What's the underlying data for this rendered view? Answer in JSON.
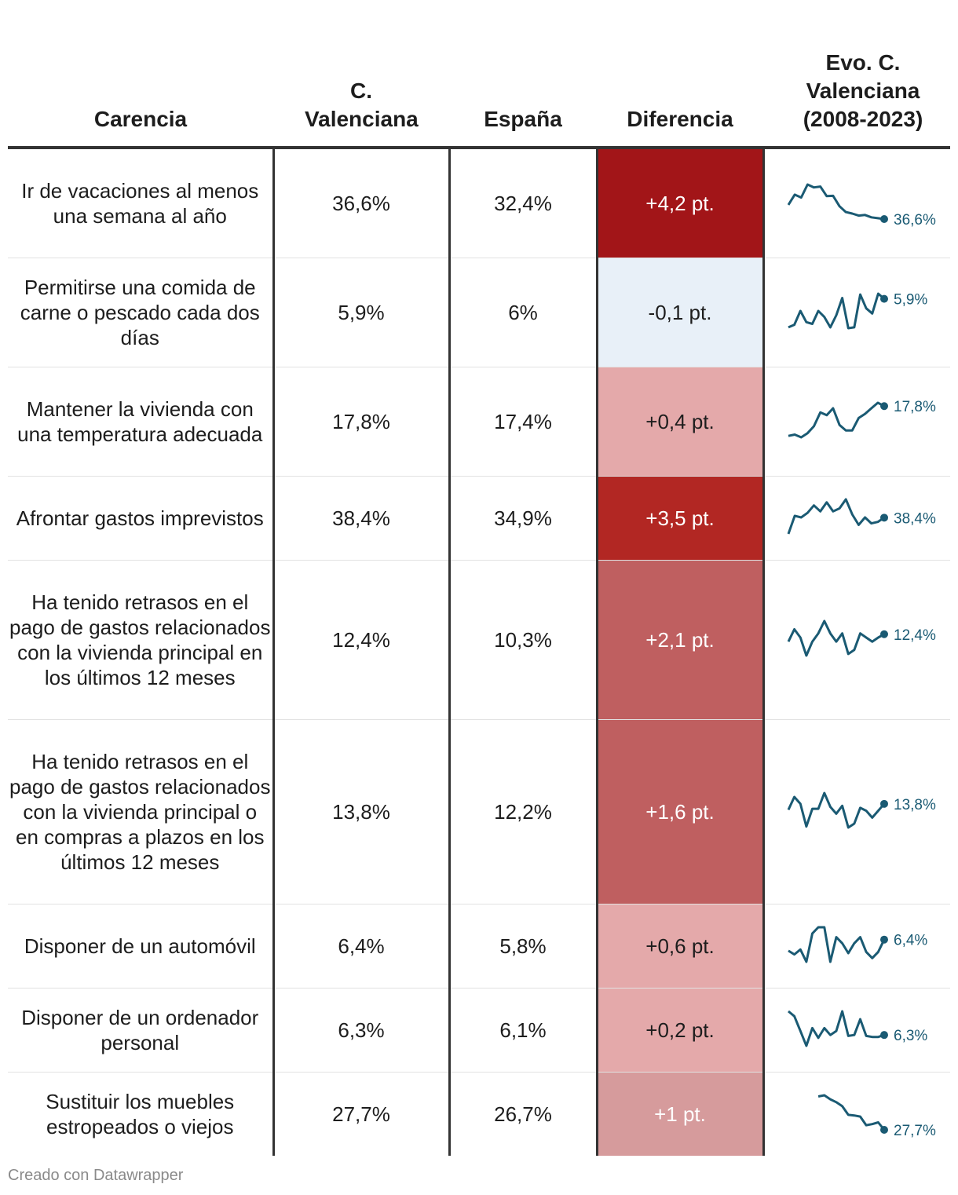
{
  "header": {
    "carencia": "Carencia",
    "cval": "C. Valenciana",
    "espana": "España",
    "diferencia": "Diferencia",
    "evo": "Evo. C. Valenciana (2008-2023)"
  },
  "footer": {
    "credit": "Creado con Datawrapper"
  },
  "colors": {
    "sparkline": "#1a5a73",
    "header_rule": "#333333"
  },
  "chart_data": {
    "type": "table",
    "columns": [
      "Carencia",
      "C. Valenciana",
      "España",
      "Diferencia",
      "Evo. C. Valenciana (2008-2023)"
    ],
    "rows": [
      {
        "carencia": "Ir de vacaciones al menos una semana al año",
        "cval": "36,6%",
        "espana": "32,4%",
        "diff": "+4,2 pt.",
        "diff_value": 4.2,
        "diff_color": "#a21518",
        "spark_label": "36,6%",
        "spark": [
          41.5,
          45,
          44,
          48.5,
          47.5,
          47.8,
          44.5,
          44.6,
          41,
          39,
          38.5,
          37.8,
          38,
          37.2,
          36.9,
          36.6
        ]
      },
      {
        "carencia": "Permitirse una comida de carne o pescado cada dos días",
        "cval": "5,9%",
        "espana": "6%",
        "diff": "-0,1 pt.",
        "diff_value": -0.1,
        "diff_color": "#e8f0f8",
        "spark_label": "5,9%",
        "spark": [
          2.6,
          2.9,
          4.5,
          3.2,
          3.0,
          4.5,
          3.8,
          2.6,
          4.0,
          6.0,
          2.5,
          2.6,
          6.4,
          4.8,
          4.2,
          6.5,
          5.9
        ]
      },
      {
        "carencia": "Mantener la vivienda con una temperatura adecuada",
        "cval": "17,8%",
        "espana": "17,4%",
        "diff": "+0,4 pt.",
        "diff_value": 0.4,
        "diff_color": "#e4a9aa",
        "spark_label": "17,8%",
        "spark": [
          7,
          7.5,
          6.5,
          8,
          10.5,
          15.5,
          14.5,
          17,
          11,
          9,
          9,
          13.5,
          15,
          17,
          19,
          17.8
        ]
      },
      {
        "carencia": "Afrontar gastos imprevistos",
        "cval": "38,4%",
        "espana": "34,9%",
        "diff": "+3,5 pt.",
        "diff_value": 3.5,
        "diff_color": "#b22723",
        "spark_label": "38,4%",
        "spark": [
          33,
          39,
          38.5,
          40,
          42.5,
          40.5,
          43.5,
          40.5,
          41.5,
          44.5,
          39.5,
          36,
          38.5,
          36.5,
          37,
          38.4
        ]
      },
      {
        "carencia": "Ha tenido retrasos en el pago de gastos relacionados con la vivienda principal en los últimos 12 meses",
        "cval": "12,4%",
        "espana": "10,3%",
        "diff": "+2,1 pt.",
        "diff_value": 2.1,
        "diff_color": "#bf5f60",
        "spark_label": "12,4%",
        "spark": [
          11.5,
          13,
          12,
          9.8,
          11.5,
          12.5,
          14,
          12.5,
          11.5,
          12.5,
          10,
          10.5,
          12.5,
          12,
          11.5,
          12,
          12.4
        ]
      },
      {
        "carencia": "Ha tenido retrasos en el pago de gastos relacionados con la vivienda principal o en compras a plazos en los últimos 12 meses",
        "cval": "13,8%",
        "espana": "12,2%",
        "diff": "+1,6 pt.",
        "diff_value": 1.6,
        "diff_color": "#bf5f60",
        "spark_label": "13,8%",
        "spark": [
          13.2,
          14.5,
          13.8,
          11.5,
          13.3,
          13.3,
          14.9,
          13.5,
          12.8,
          13.6,
          11.4,
          11.8,
          13.4,
          13.1,
          12.4,
          13.1,
          13.8
        ]
      },
      {
        "carencia": "Disponer de un automóvil",
        "cval": "6,4%",
        "espana": "5,8%",
        "diff": "+0,6 pt.",
        "diff_value": 0.6,
        "diff_color": "#e4a9aa",
        "spark_label": "6,4%",
        "spark": [
          5.5,
          5.2,
          5.6,
          4.6,
          6.9,
          7.4,
          7.4,
          4.6,
          6.6,
          6.1,
          5.3,
          6.1,
          6.6,
          5.4,
          4.9,
          5.4,
          6.4
        ]
      },
      {
        "carencia": "Disponer de un ordenador personal",
        "cval": "6,3%",
        "espana": "6,1%",
        "diff": "+0,2 pt.",
        "diff_value": 0.2,
        "diff_color": "#e4a9aa",
        "spark_label": "6,3%",
        "spark": [
          8.7,
          8.2,
          6.7,
          5.2,
          7.0,
          6.0,
          7.0,
          6.3,
          6.7,
          8.7,
          6.2,
          6.3,
          7.9,
          6.2,
          6.1,
          6.1,
          6.3
        ]
      },
      {
        "carencia": "Sustituir los muebles estropeados o viejos",
        "cval": "27,7%",
        "espana": "26,7%",
        "diff": "+1 pt.",
        "diff_value": 1.0,
        "diff_color": "#d69b9c",
        "spark_label": "27,7%",
        "spark": [
          null,
          null,
          null,
          null,
          null,
          33.5,
          33.7,
          33,
          32.5,
          31.8,
          30.3,
          30.2,
          30.0,
          28.5,
          28.7,
          29,
          27.7
        ]
      }
    ]
  }
}
